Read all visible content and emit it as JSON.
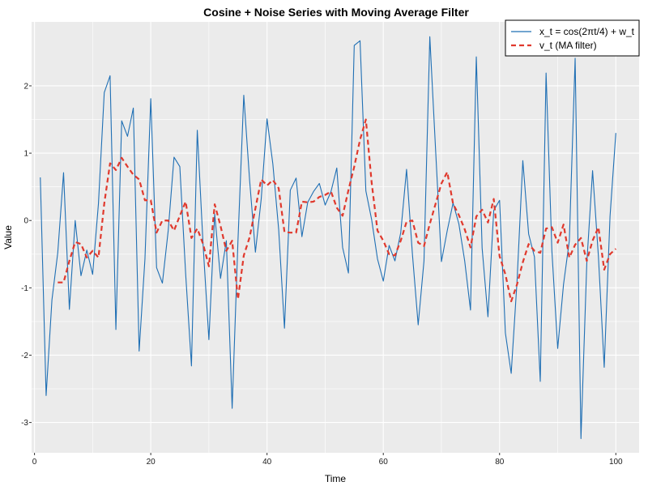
{
  "chart_data": {
    "type": "line",
    "title": "Cosine + Noise Series with Moving Average Filter",
    "xlabel": "Time",
    "ylabel": "Value",
    "xlim": [
      -0.5,
      104
    ],
    "ylim": [
      -3.45,
      2.95
    ],
    "x_ticks": [
      0,
      20,
      40,
      60,
      80,
      100
    ],
    "x_tick_labels": [
      "0",
      "20",
      "40",
      "60",
      "80",
      "100"
    ],
    "y_ticks": [
      -3,
      -2,
      -1,
      0,
      1,
      2
    ],
    "y_tick_labels": [
      "-3",
      "-2",
      "-1",
      "0",
      "1",
      "2"
    ],
    "grid": true,
    "legend_position": "top-right",
    "series": [
      {
        "name": "x_t = cos(2πt/4) + w_t",
        "color": "#1f6fb4",
        "style": "solid",
        "x": [
          1,
          2,
          3,
          4,
          5,
          6,
          7,
          8,
          9,
          10,
          11,
          12,
          13,
          14,
          15,
          16,
          17,
          18,
          19,
          20,
          21,
          22,
          23,
          24,
          25,
          26,
          27,
          28,
          29,
          30,
          31,
          32,
          33,
          34,
          35,
          36,
          37,
          38,
          39,
          40,
          41,
          42,
          43,
          44,
          45,
          46,
          47,
          48,
          49,
          50,
          51,
          52,
          53,
          54,
          55,
          56,
          57,
          58,
          59,
          60,
          61,
          62,
          63,
          64,
          65,
          66,
          67,
          68,
          69,
          70,
          71,
          72,
          73,
          74,
          75,
          76,
          77,
          78,
          79,
          80,
          81,
          82,
          83,
          84,
          85,
          86,
          87,
          88,
          89,
          90,
          91,
          92,
          93,
          94,
          95,
          96,
          97,
          98,
          99,
          100
        ],
        "y": [
          0.64,
          -2.6,
          -1.18,
          -0.48,
          0.71,
          -1.32,
          0.0,
          -0.82,
          -0.44,
          -0.8,
          0.25,
          1.9,
          2.15,
          -1.62,
          1.48,
          1.25,
          1.67,
          -1.94,
          -0.57,
          1.81,
          -0.7,
          -0.93,
          -0.15,
          0.94,
          0.8,
          -0.79,
          -2.16,
          1.34,
          -0.36,
          -1.77,
          0.1,
          -0.86,
          -0.3,
          -2.79,
          -0.3,
          1.86,
          0.6,
          -0.47,
          0.32,
          1.51,
          0.84,
          -0.13,
          -1.6,
          0.45,
          0.63,
          -0.24,
          0.27,
          0.43,
          0.55,
          0.23,
          0.43,
          0.78,
          -0.4,
          -0.78,
          2.6,
          2.67,
          0.44,
          0.01,
          -0.57,
          -0.9,
          -0.37,
          -0.6,
          -0.18,
          0.76,
          -0.49,
          -1.55,
          -0.6,
          2.73,
          1.04,
          -0.61,
          -0.15,
          0.26,
          -0.05,
          -0.6,
          -1.33,
          2.43,
          -0.41,
          -1.43,
          0.15,
          0.3,
          -1.67,
          -2.27,
          -0.91,
          0.89,
          -0.2,
          -0.54,
          -2.39,
          2.19,
          -0.45,
          -1.9,
          -0.95,
          -0.3,
          2.41,
          -3.24,
          -0.64,
          0.74,
          -0.53,
          -2.18,
          0.06,
          1.3
        ]
      },
      {
        "name": "v_t (MA filter)",
        "color": "#e0392d",
        "style": "dashed",
        "x": [
          4,
          5,
          6,
          7,
          8,
          9,
          10,
          11,
          12,
          13,
          14,
          15,
          16,
          17,
          18,
          19,
          20,
          21,
          22,
          23,
          24,
          25,
          26,
          27,
          28,
          29,
          30,
          31,
          32,
          33,
          34,
          35,
          36,
          37,
          38,
          39,
          40,
          41,
          42,
          43,
          44,
          45,
          46,
          47,
          48,
          49,
          50,
          51,
          52,
          53,
          54,
          55,
          56,
          57,
          58,
          59,
          60,
          61,
          62,
          63,
          64,
          65,
          66,
          67,
          68,
          69,
          70,
          71,
          72,
          73,
          74,
          75,
          76,
          77,
          78,
          79,
          80,
          81,
          82,
          83,
          84,
          85,
          86,
          87,
          88,
          89,
          90,
          91,
          92,
          93,
          94,
          95,
          96,
          97,
          98,
          99,
          100
        ],
        "y": [
          -0.92,
          -0.92,
          -0.6,
          -0.32,
          -0.35,
          -0.55,
          -0.45,
          -0.55,
          0.25,
          0.85,
          0.75,
          0.93,
          0.8,
          0.68,
          0.61,
          0.3,
          0.3,
          -0.18,
          0.0,
          0.0,
          -0.15,
          0.07,
          0.28,
          -0.26,
          -0.12,
          -0.35,
          -0.68,
          0.24,
          -0.08,
          -0.45,
          -0.3,
          -1.17,
          -0.52,
          -0.25,
          0.18,
          0.61,
          0.52,
          0.6,
          0.48,
          -0.17,
          -0.18,
          -0.18,
          0.28,
          0.27,
          0.28,
          0.35,
          0.38,
          0.43,
          0.19,
          0.07,
          0.45,
          0.8,
          1.2,
          1.5,
          0.56,
          -0.15,
          -0.3,
          -0.5,
          -0.52,
          -0.3,
          -0.02,
          0.0,
          -0.33,
          -0.38,
          -0.05,
          0.25,
          0.55,
          0.72,
          0.25,
          0.08,
          -0.13,
          -0.4,
          0.06,
          0.16,
          -0.03,
          0.32,
          -0.53,
          -0.8,
          -1.2,
          -0.95,
          -0.62,
          -0.35,
          -0.45,
          -0.48,
          -0.12,
          -0.1,
          -0.33,
          -0.06,
          -0.55,
          -0.36,
          -0.26,
          -0.6,
          -0.3,
          -0.1,
          -0.73,
          -0.5,
          -0.42
        ]
      }
    ]
  }
}
